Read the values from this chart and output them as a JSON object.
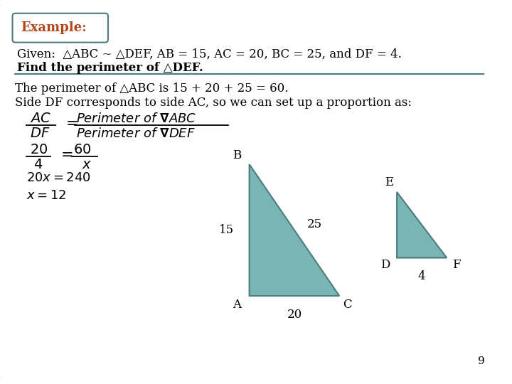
{
  "bg_color": "#ffffff",
  "border_color": "#4d7c7c",
  "example_label": "Example:",
  "example_color": "#b5451b",
  "given_text": "Given:  △ABC ~ △DEF, AB = 15, AC = 20, BC = 25, and DF = 4.",
  "find_text": "Find the perimeter of △DEF.",
  "solution_line1": "The perimeter of △ABC is 15 + 20 + 25 = 60.",
  "solution_line2": "Side DF corresponds to side AC, so we can set up a proportion as:",
  "tri1_color": "#7ab5b5",
  "tri2_color": "#7ab5b5",
  "tri_edge_color": "#4d7c7c",
  "page_number": "9",
  "figw": 7.2,
  "figh": 5.4,
  "dpi": 100
}
